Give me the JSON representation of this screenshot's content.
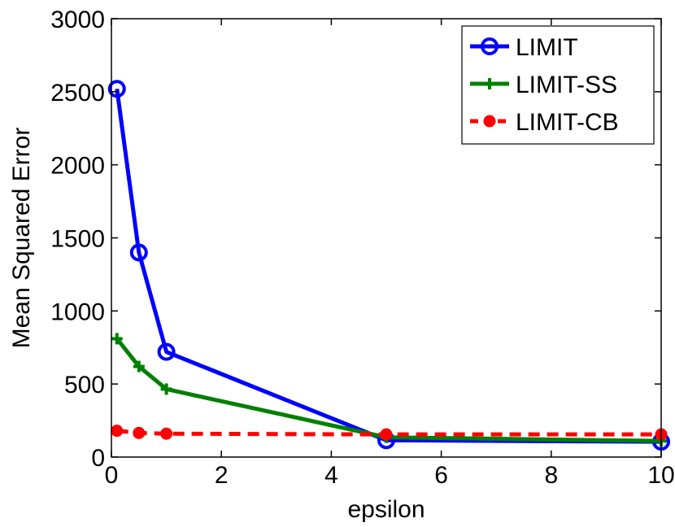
{
  "chart_data": {
    "type": "line",
    "title": "",
    "xlabel": "epsilon",
    "ylabel": "Mean Squared Error",
    "xlim": [
      0,
      10
    ],
    "ylim": [
      0,
      3000
    ],
    "xticks": [
      0,
      2,
      4,
      6,
      8,
      10
    ],
    "yticks": [
      0,
      500,
      1000,
      1500,
      2000,
      2500,
      3000
    ],
    "grid": false,
    "legend_position": "top-right",
    "series": [
      {
        "name": "LIMIT",
        "color": "#0000ff",
        "line_style": "solid",
        "marker": "circle",
        "x": [
          0.1,
          0.5,
          1,
          5,
          10
        ],
        "y": [
          2520,
          1400,
          720,
          115,
          105
        ]
      },
      {
        "name": "LIMIT-SS",
        "color": "#008000",
        "line_style": "solid",
        "marker": "plus",
        "x": [
          0.1,
          0.5,
          1,
          5,
          10
        ],
        "y": [
          810,
          620,
          465,
          135,
          110
        ]
      },
      {
        "name": "LIMIT-CB",
        "color": "#ff0000",
        "line_style": "dashed",
        "marker": "dot",
        "x": [
          0.1,
          0.5,
          1,
          5,
          10
        ],
        "y": [
          180,
          165,
          160,
          155,
          155
        ]
      }
    ]
  }
}
